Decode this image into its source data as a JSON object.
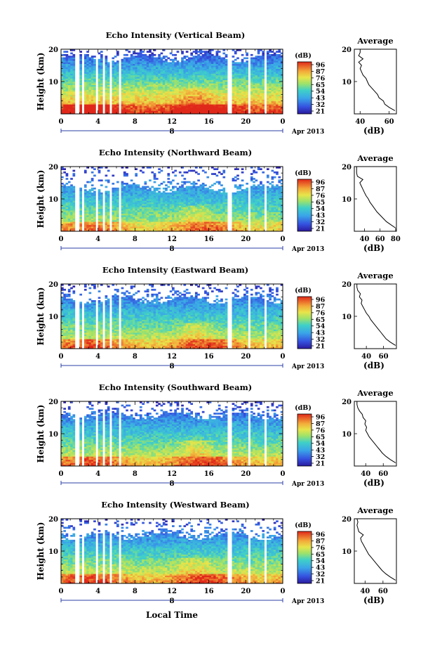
{
  "chart_data": {
    "type": "heatmap",
    "xlabel": "Local Time",
    "date_label": "Apr 2013",
    "day_label": "8",
    "x_ticks": [
      "0",
      "4",
      "8",
      "12",
      "16",
      "20",
      "0"
    ],
    "y_ticks": [
      "20",
      "10"
    ],
    "ylabel": "Height (km)",
    "colorbar_unit": "(dB)",
    "colors": {
      "low": "#2b1a9e",
      "mid": "#37c4d8",
      "midhigh": "#e6e24a",
      "high": "#e0281a"
    },
    "panels": [
      {
        "title": "Echo Intensity (Vertical Beam)",
        "colorbar_ticks": [
          "96",
          "87",
          "76",
          "65",
          "54",
          "43",
          "32",
          "21"
        ],
        "profile_title": "Average",
        "profile_x_ticks": [
          "40",
          "60"
        ],
        "profile_xlabel": "(dB)",
        "profile_y_ticks": [
          "20",
          "10"
        ],
        "profile": [
          {
            "h": 1.0,
            "db": 64
          },
          {
            "h": 2.0,
            "db": 60
          },
          {
            "h": 3.0,
            "db": 57
          },
          {
            "h": 4.0,
            "db": 56
          },
          {
            "h": 5.0,
            "db": 53
          },
          {
            "h": 6.0,
            "db": 52
          },
          {
            "h": 7.0,
            "db": 50
          },
          {
            "h": 8.0,
            "db": 48
          },
          {
            "h": 9.0,
            "db": 46
          },
          {
            "h": 10.0,
            "db": 45
          },
          {
            "h": 11.0,
            "db": 44
          },
          {
            "h": 12.0,
            "db": 42
          },
          {
            "h": 13.0,
            "db": 41
          },
          {
            "h": 14.0,
            "db": 40
          },
          {
            "h": 15.0,
            "db": 41
          },
          {
            "h": 16.0,
            "db": 39
          },
          {
            "h": 17.0,
            "db": 42
          },
          {
            "h": 18.0,
            "db": 39
          },
          {
            "h": 19.0,
            "db": 40
          },
          {
            "h": 20.0,
            "db": 40
          }
        ]
      },
      {
        "title": "Echo Intensity (Northward Beam)",
        "colorbar_ticks": [
          "96",
          "87",
          "76",
          "65",
          "54",
          "43",
          "32",
          "21"
        ],
        "profile_title": "Average",
        "profile_x_ticks": [
          "40",
          "60",
          "80"
        ],
        "profile_xlabel": "(dB)",
        "profile_y_ticks": [
          "20",
          "10"
        ],
        "profile": [
          {
            "h": 1.0,
            "db": 80
          },
          {
            "h": 2.0,
            "db": 74
          },
          {
            "h": 3.0,
            "db": 68
          },
          {
            "h": 4.0,
            "db": 64
          },
          {
            "h": 5.0,
            "db": 60
          },
          {
            "h": 6.0,
            "db": 56
          },
          {
            "h": 7.0,
            "db": 53
          },
          {
            "h": 8.0,
            "db": 50
          },
          {
            "h": 9.0,
            "db": 47
          },
          {
            "h": 10.0,
            "db": 45
          },
          {
            "h": 11.0,
            "db": 42
          },
          {
            "h": 12.0,
            "db": 40
          },
          {
            "h": 13.0,
            "db": 38
          },
          {
            "h": 14.0,
            "db": 36
          },
          {
            "h": 15.0,
            "db": 34
          },
          {
            "h": 16.0,
            "db": 38
          },
          {
            "h": 17.0,
            "db": 31
          },
          {
            "h": 18.0,
            "db": 30
          },
          {
            "h": 19.0,
            "db": 30
          },
          {
            "h": 20.0,
            "db": 30
          }
        ]
      },
      {
        "title": "Echo Intensity (Eastward Beam)",
        "colorbar_ticks": [
          "96",
          "87",
          "76",
          "65",
          "54",
          "43",
          "32",
          "21"
        ],
        "profile_title": "Average",
        "profile_x_ticks": [
          "40",
          "60"
        ],
        "profile_xlabel": "(dB)",
        "profile_y_ticks": [
          "20",
          "10"
        ],
        "profile": [
          {
            "h": 1.0,
            "db": 74
          },
          {
            "h": 2.0,
            "db": 68
          },
          {
            "h": 3.0,
            "db": 63
          },
          {
            "h": 4.0,
            "db": 60
          },
          {
            "h": 5.0,
            "db": 57
          },
          {
            "h": 6.0,
            "db": 54
          },
          {
            "h": 7.0,
            "db": 51
          },
          {
            "h": 8.0,
            "db": 48
          },
          {
            "h": 9.0,
            "db": 45
          },
          {
            "h": 10.0,
            "db": 43
          },
          {
            "h": 11.0,
            "db": 40
          },
          {
            "h": 12.0,
            "db": 38
          },
          {
            "h": 13.0,
            "db": 36
          },
          {
            "h": 14.0,
            "db": 34
          },
          {
            "h": 15.0,
            "db": 35
          },
          {
            "h": 16.0,
            "db": 32
          },
          {
            "h": 17.0,
            "db": 33
          },
          {
            "h": 18.0,
            "db": 30
          },
          {
            "h": 19.0,
            "db": 29
          },
          {
            "h": 20.0,
            "db": 29
          }
        ]
      },
      {
        "title": "Echo Intensity (Southward Beam)",
        "colorbar_ticks": [
          "96",
          "87",
          "76",
          "65",
          "54",
          "43",
          "32",
          "21"
        ],
        "profile_title": "Average",
        "profile_x_ticks": [
          "40",
          "60"
        ],
        "profile_xlabel": "(dB)",
        "profile_y_ticks": [
          "20",
          "10"
        ],
        "profile": [
          {
            "h": 1.0,
            "db": 74
          },
          {
            "h": 2.0,
            "db": 68
          },
          {
            "h": 3.0,
            "db": 63
          },
          {
            "h": 4.0,
            "db": 59
          },
          {
            "h": 5.0,
            "db": 56
          },
          {
            "h": 6.0,
            "db": 53
          },
          {
            "h": 7.0,
            "db": 50
          },
          {
            "h": 8.0,
            "db": 47
          },
          {
            "h": 9.0,
            "db": 44
          },
          {
            "h": 10.0,
            "db": 42
          },
          {
            "h": 11.0,
            "db": 40
          },
          {
            "h": 12.0,
            "db": 41
          },
          {
            "h": 13.0,
            "db": 39
          },
          {
            "h": 14.0,
            "db": 40
          },
          {
            "h": 15.0,
            "db": 37
          },
          {
            "h": 16.0,
            "db": 36
          },
          {
            "h": 17.0,
            "db": 33
          },
          {
            "h": 18.0,
            "db": 31
          },
          {
            "h": 19.0,
            "db": 30
          },
          {
            "h": 20.0,
            "db": 30
          }
        ]
      },
      {
        "title": "Echo Intensity (Westward Beam)",
        "colorbar_ticks": [
          "96",
          "87",
          "76",
          "65",
          "54",
          "43",
          "32",
          "21"
        ],
        "profile_title": "Average",
        "profile_x_ticks": [
          "40",
          "60"
        ],
        "profile_xlabel": "(dB)",
        "profile_y_ticks": [
          "20",
          "10"
        ],
        "profile": [
          {
            "h": 1.0,
            "db": 74
          },
          {
            "h": 2.0,
            "db": 68
          },
          {
            "h": 3.0,
            "db": 63
          },
          {
            "h": 4.0,
            "db": 59
          },
          {
            "h": 5.0,
            "db": 56
          },
          {
            "h": 6.0,
            "db": 53
          },
          {
            "h": 7.0,
            "db": 50
          },
          {
            "h": 8.0,
            "db": 47
          },
          {
            "h": 9.0,
            "db": 44
          },
          {
            "h": 10.0,
            "db": 42
          },
          {
            "h": 11.0,
            "db": 40
          },
          {
            "h": 12.0,
            "db": 38
          },
          {
            "h": 13.0,
            "db": 36
          },
          {
            "h": 14.0,
            "db": 35
          },
          {
            "h": 15.0,
            "db": 38
          },
          {
            "h": 16.0,
            "db": 33
          },
          {
            "h": 17.0,
            "db": 32
          },
          {
            "h": 18.0,
            "db": 31
          },
          {
            "h": 19.0,
            "db": 32
          },
          {
            "h": 20.0,
            "db": 31
          }
        ]
      }
    ]
  }
}
